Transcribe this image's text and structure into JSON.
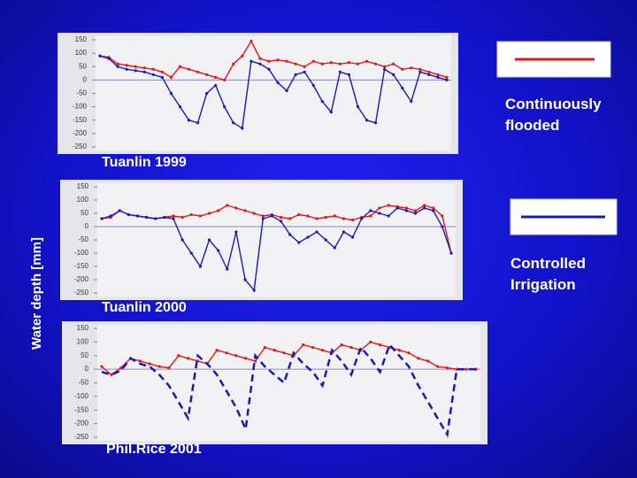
{
  "y_label": "Water depth [mm]",
  "legend": [
    {
      "label": "Continuously flooded",
      "color": "#e01818"
    },
    {
      "label": "Controlled Irrigation",
      "color": "#1a1ab8"
    }
  ],
  "chart_data": [
    {
      "type": "line",
      "title": "Tuanlin 1999",
      "ylim": [
        -250,
        150
      ],
      "yticks": [
        150,
        100,
        50,
        0,
        -50,
        -100,
        -150,
        -200,
        -250
      ],
      "series": [
        {
          "color": "#e01818",
          "values": [
            90,
            85,
            60,
            55,
            50,
            45,
            40,
            30,
            10,
            50,
            40,
            30,
            20,
            10,
            0,
            60,
            90,
            145,
            80,
            70,
            75,
            70,
            60,
            50,
            70,
            60,
            65,
            60,
            65,
            60,
            70,
            60,
            50,
            60,
            40,
            45,
            40,
            30,
            20,
            10
          ]
        },
        {
          "color": "#1a1ab8",
          "values": [
            90,
            80,
            50,
            40,
            35,
            30,
            20,
            10,
            -50,
            -100,
            -150,
            -160,
            -50,
            -20,
            -100,
            -160,
            -180,
            70,
            60,
            40,
            -10,
            -40,
            20,
            30,
            -20,
            -80,
            -120,
            30,
            20,
            -100,
            -150,
            -160,
            40,
            20,
            -30,
            -80,
            30,
            20,
            10,
            0
          ]
        }
      ]
    },
    {
      "type": "line",
      "title": "Tuanlin 2000",
      "ylim": [
        -250,
        150
      ],
      "yticks": [
        150,
        100,
        50,
        0,
        -50,
        -100,
        -150,
        -200,
        -250
      ],
      "series": [
        {
          "color": "#e01818",
          "values": [
            30,
            35,
            60,
            45,
            40,
            35,
            30,
            35,
            40,
            35,
            45,
            40,
            50,
            60,
            80,
            70,
            60,
            50,
            40,
            45,
            35,
            30,
            45,
            40,
            30,
            35,
            40,
            30,
            25,
            35,
            40,
            70,
            80,
            75,
            70,
            60,
            80,
            70,
            40,
            -100
          ]
        },
        {
          "color": "#1a1ab8",
          "values": [
            30,
            40,
            60,
            45,
            40,
            35,
            30,
            35,
            30,
            -50,
            -100,
            -150,
            -50,
            -90,
            -160,
            -20,
            -200,
            -240,
            30,
            40,
            20,
            -30,
            -60,
            -40,
            -20,
            -50,
            -80,
            -20,
            -40,
            30,
            60,
            50,
            40,
            70,
            60,
            50,
            70,
            60,
            0,
            -100
          ]
        }
      ]
    },
    {
      "type": "line",
      "title": "Phil.Rice 2001",
      "ylim": [
        -250,
        150
      ],
      "yticks": [
        150,
        100,
        50,
        0,
        -50,
        -100,
        -150,
        -200,
        -250
      ],
      "series": [
        {
          "color": "#e01818",
          "values": [
            10,
            -20,
            5,
            40,
            30,
            20,
            10,
            5,
            50,
            40,
            30,
            20,
            70,
            60,
            50,
            40,
            30,
            80,
            70,
            60,
            50,
            90,
            80,
            70,
            60,
            90,
            80,
            70,
            100,
            90,
            80,
            70,
            60,
            40,
            30,
            10,
            5,
            0,
            0,
            0
          ]
        },
        {
          "color": "#1a1ab8",
          "dashed": true,
          "values": [
            -10,
            -20,
            -5,
            40,
            20,
            10,
            -20,
            -60,
            -120,
            -180,
            50,
            20,
            -20,
            -80,
            -140,
            -220,
            50,
            10,
            -20,
            -50,
            60,
            20,
            -10,
            -60,
            70,
            30,
            -20,
            80,
            40,
            -10,
            90,
            50,
            10,
            -60,
            -120,
            -180,
            -240,
            0,
            0,
            0
          ]
        }
      ]
    }
  ]
}
